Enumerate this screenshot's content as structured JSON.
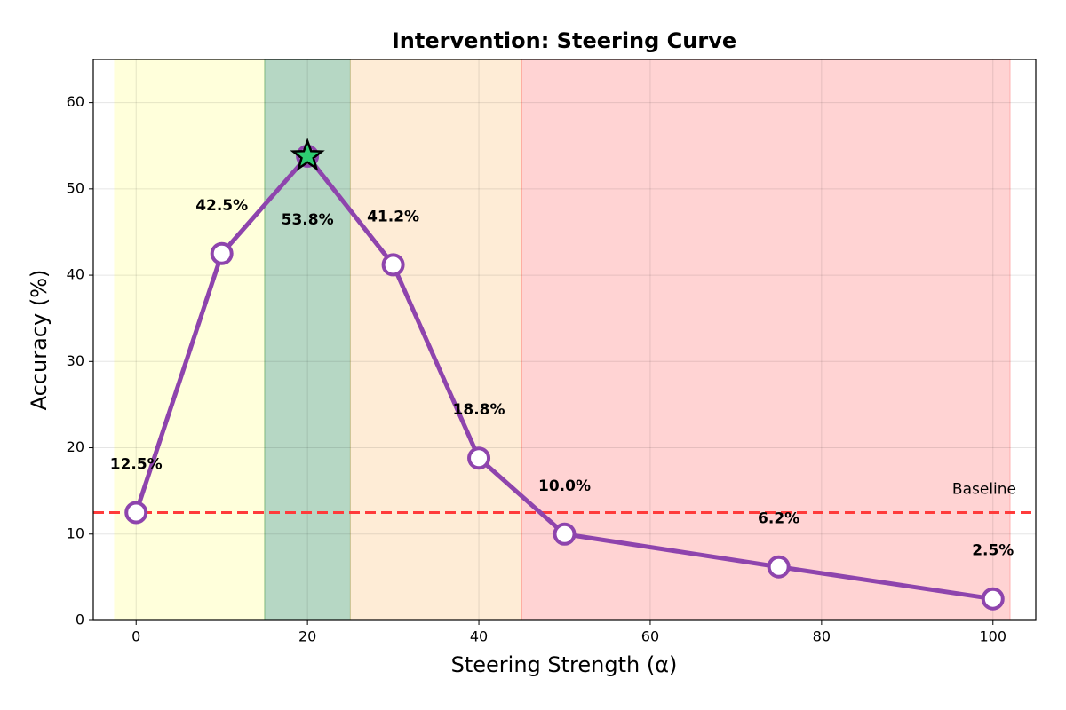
{
  "chart_data": {
    "type": "line",
    "title": "Intervention: Steering Curve",
    "xlabel": "Steering Strength (α)",
    "ylabel": "Accuracy (%)",
    "x": [
      0,
      10,
      20,
      30,
      40,
      50,
      75,
      100
    ],
    "series": [
      {
        "color": "#8e44ad",
        "values": [
          12.5,
          42.5,
          53.8,
          41.2,
          18.8,
          10.0,
          6.2,
          2.5
        ],
        "value_labels": [
          "12.5%",
          "42.5%",
          "53.8%",
          "41.2%",
          "18.8%",
          "10.0%",
          "6.2%",
          "2.5%"
        ]
      }
    ],
    "regions": [
      {
        "start": -2.5,
        "end": 15,
        "color": "#ffff99"
      },
      {
        "start": 15,
        "end": 25,
        "color": "#2e8b57"
      },
      {
        "start": 25,
        "end": 45,
        "color": "#fbc98a"
      },
      {
        "start": 45,
        "end": 102,
        "color": "#ff8080"
      }
    ],
    "baseline": {
      "value": 12.5,
      "label": "Baseline",
      "color": "#ff3b3b"
    },
    "xlim": [
      -5,
      105
    ],
    "ylim": [
      0,
      65
    ],
    "xticks": [
      0,
      20,
      40,
      60,
      80,
      100
    ],
    "yticks": [
      0,
      10,
      20,
      30,
      40,
      50,
      60
    ],
    "grid": true
  }
}
